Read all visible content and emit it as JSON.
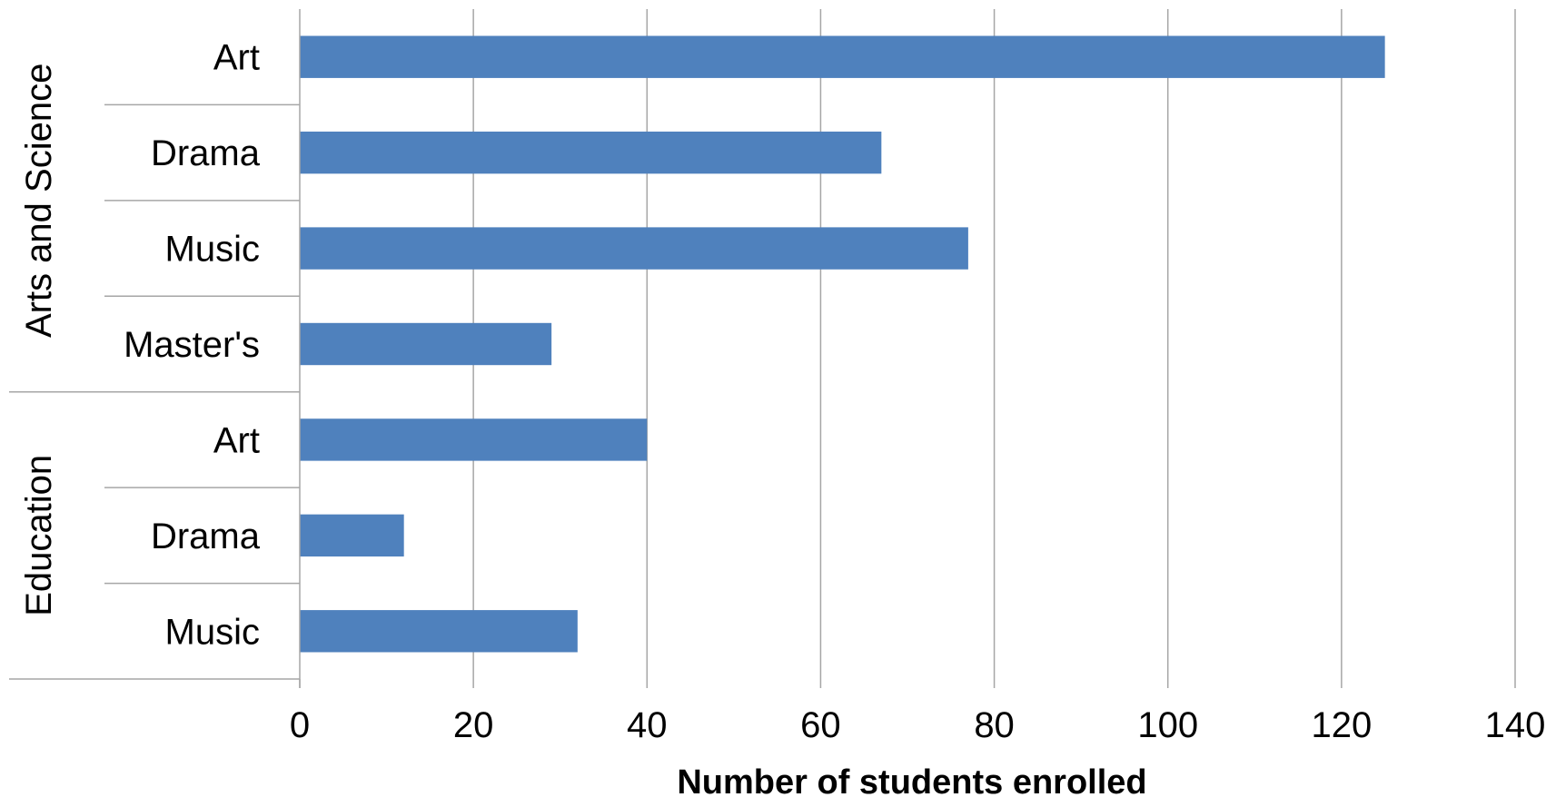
{
  "chart_data": {
    "type": "bar",
    "orientation": "horizontal",
    "title": "",
    "xlabel": "Number of students enrolled",
    "ylabel": "",
    "xlim": [
      0,
      140
    ],
    "x_ticks": [
      "0",
      "20",
      "40",
      "60",
      "80",
      "100",
      "120",
      "140"
    ],
    "grid": true,
    "legend": "none",
    "bar_color": "#4f81bd",
    "grid_color": "#a6a6a6",
    "groups": [
      {
        "name": "Arts and Science",
        "categories": [
          "Art",
          "Drama",
          "Music",
          "Master's"
        ],
        "values": [
          125,
          67,
          77,
          29
        ]
      },
      {
        "name": "Education",
        "categories": [
          "Art",
          "Drama",
          "Music"
        ],
        "values": [
          40,
          12,
          32
        ]
      }
    ]
  }
}
